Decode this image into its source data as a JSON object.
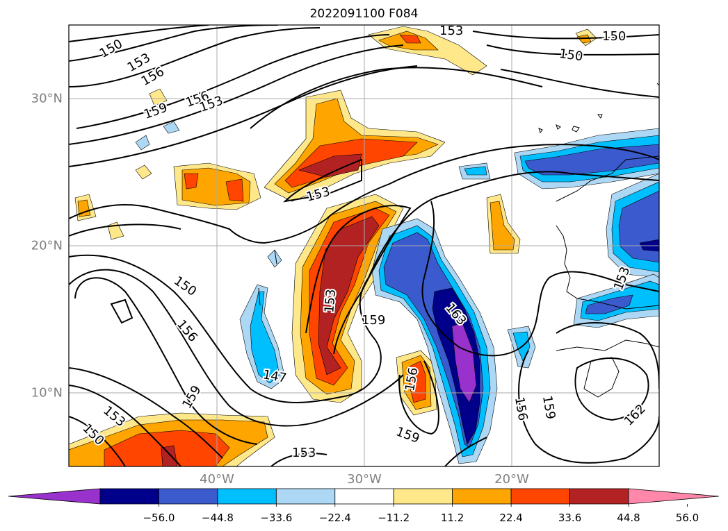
{
  "title": "2022091100 F084",
  "axes": {
    "lon_labels": [
      "40°W",
      "30°W",
      "20°W"
    ],
    "lat_labels": [
      "30°N",
      "20°N",
      "10°N"
    ],
    "grid": true
  },
  "contour_labels": [
    "150",
    "153",
    "156",
    "159",
    "156",
    "153",
    "153",
    "150",
    "150",
    "153",
    "150",
    "156",
    "159",
    "153",
    "159",
    "147",
    "156",
    "159",
    "163",
    "153",
    "156",
    "159",
    "162",
    "153",
    "153",
    "150"
  ],
  "colorbar": {
    "ticks": [
      "−56.0",
      "−44.8",
      "−33.6",
      "−22.4",
      "−11.2",
      "11.2",
      "22.4",
      "33.6",
      "44.8",
      "56.0"
    ],
    "colors": [
      "#9932cc",
      "#00008b",
      "#3a5acd",
      "#00bfff",
      "#add8f5",
      "#ffffff",
      "#ffe88a",
      "#ffa500",
      "#ff4500",
      "#b22222",
      "#ff88aa"
    ]
  }
}
